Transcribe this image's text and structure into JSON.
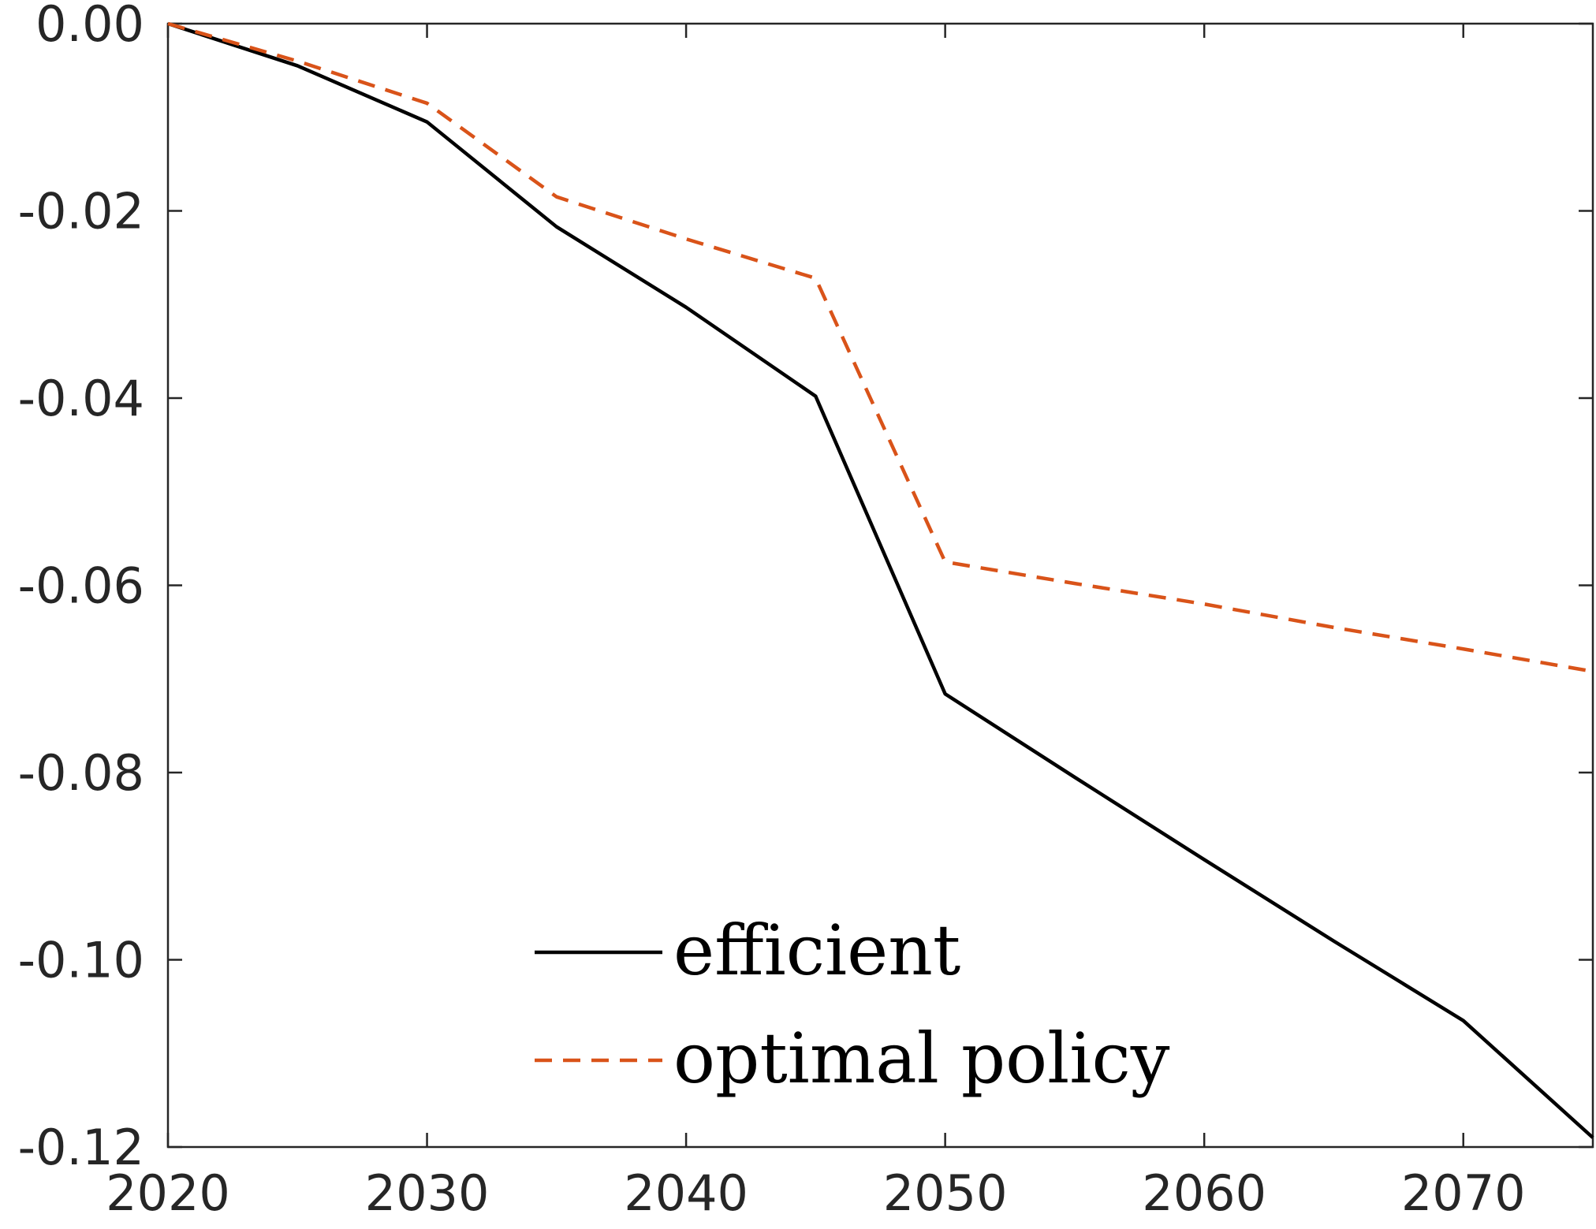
{
  "chart_data": {
    "type": "line",
    "title": "",
    "xlabel": "",
    "ylabel": "",
    "x": [
      2020,
      2025,
      2030,
      2035,
      2040,
      2045,
      2050,
      2055,
      2060,
      2065,
      2070,
      2075
    ],
    "xlim": [
      2020,
      2075
    ],
    "ylim": [
      -0.12,
      0.0
    ],
    "xticks": [
      2020,
      2030,
      2040,
      2050,
      2060,
      2070
    ],
    "xtick_labels": [
      "2020",
      "2030",
      "2040",
      "2050",
      "2060",
      "2070"
    ],
    "yticks": [
      0.0,
      -0.02,
      -0.04,
      -0.06,
      -0.08,
      -0.1,
      -0.12
    ],
    "ytick_labels": [
      "0.00",
      "-0.02",
      "-0.04",
      "-0.06",
      "-0.08",
      "-0.10",
      "-0.12"
    ],
    "grid": false,
    "legend_position": "bottom-center",
    "series": [
      {
        "name": "efficient",
        "color": "#000000",
        "line_style": "solid",
        "values": [
          0.0,
          -0.0045,
          -0.0105,
          -0.0217,
          -0.0303,
          -0.0398,
          -0.0716,
          -0.0805,
          -0.0893,
          -0.098,
          -0.1065,
          -0.119
        ]
      },
      {
        "name": "optimal policy",
        "color": "#D95319",
        "line_style": "dashed",
        "values": [
          0.0,
          -0.004,
          -0.0085,
          -0.0185,
          -0.023,
          -0.0272,
          -0.0575,
          -0.0598,
          -0.062,
          -0.0645,
          -0.0668,
          -0.0692
        ]
      }
    ]
  }
}
